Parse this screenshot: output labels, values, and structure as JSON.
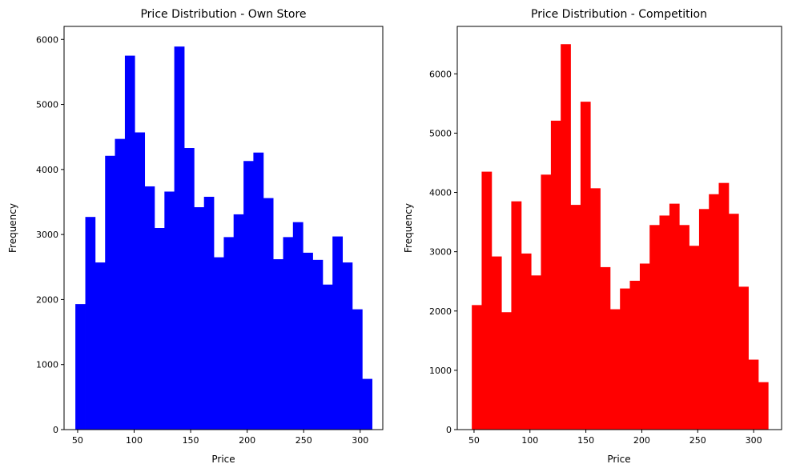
{
  "chart_data": [
    {
      "type": "bar",
      "title": "Price Distribution - Own Store",
      "xlabel": "Price",
      "ylabel": "Frequency",
      "xlim": [
        38,
        320
      ],
      "ylim": [
        0,
        6200
      ],
      "xticks": [
        50,
        100,
        150,
        200,
        250,
        300
      ],
      "yticks": [
        0,
        1000,
        2000,
        3000,
        4000,
        5000,
        6000
      ],
      "color": "#0000ff",
      "bins": [
        {
          "x0": 48.0,
          "x1": 56.8,
          "count": 1930
        },
        {
          "x0": 56.8,
          "x1": 65.5,
          "count": 3270
        },
        {
          "x0": 65.5,
          "x1": 74.3,
          "count": 2570
        },
        {
          "x0": 74.3,
          "x1": 83.0,
          "count": 4210
        },
        {
          "x0": 83.0,
          "x1": 91.8,
          "count": 4470
        },
        {
          "x0": 91.8,
          "x1": 100.5,
          "count": 5750
        },
        {
          "x0": 100.5,
          "x1": 109.3,
          "count": 4570
        },
        {
          "x0": 109.3,
          "x1": 118.0,
          "count": 3740
        },
        {
          "x0": 118.0,
          "x1": 126.8,
          "count": 3100
        },
        {
          "x0": 126.8,
          "x1": 135.5,
          "count": 3660
        },
        {
          "x0": 135.5,
          "x1": 144.3,
          "count": 5890
        },
        {
          "x0": 144.3,
          "x1": 153.0,
          "count": 4330
        },
        {
          "x0": 153.0,
          "x1": 161.8,
          "count": 3420
        },
        {
          "x0": 161.8,
          "x1": 170.5,
          "count": 3580
        },
        {
          "x0": 170.5,
          "x1": 179.3,
          "count": 2650
        },
        {
          "x0": 179.3,
          "x1": 188.0,
          "count": 2960
        },
        {
          "x0": 188.0,
          "x1": 196.8,
          "count": 3310
        },
        {
          "x0": 196.8,
          "x1": 205.5,
          "count": 4130
        },
        {
          "x0": 205.5,
          "x1": 214.3,
          "count": 4260
        },
        {
          "x0": 214.3,
          "x1": 223.0,
          "count": 3560
        },
        {
          "x0": 223.0,
          "x1": 231.8,
          "count": 2620
        },
        {
          "x0": 231.8,
          "x1": 240.5,
          "count": 2960
        },
        {
          "x0": 240.5,
          "x1": 249.3,
          "count": 3190
        },
        {
          "x0": 249.3,
          "x1": 258.0,
          "count": 2720
        },
        {
          "x0": 258.0,
          "x1": 266.8,
          "count": 2610
        },
        {
          "x0": 266.8,
          "x1": 275.5,
          "count": 2230
        },
        {
          "x0": 275.5,
          "x1": 284.3,
          "count": 2970
        },
        {
          "x0": 284.3,
          "x1": 293.0,
          "count": 2570
        },
        {
          "x0": 293.0,
          "x1": 301.8,
          "count": 1850
        },
        {
          "x0": 301.8,
          "x1": 310.5,
          "count": 780
        }
      ]
    },
    {
      "type": "bar",
      "title": "Price Distribution - Competition",
      "xlabel": "Price",
      "ylabel": "Frequency",
      "xlim": [
        35,
        325
      ],
      "ylim": [
        0,
        6800
      ],
      "xticks": [
        50,
        100,
        150,
        200,
        250,
        300
      ],
      "yticks": [
        0,
        1000,
        2000,
        3000,
        4000,
        5000,
        6000
      ],
      "color": "#ff0000",
      "bins": [
        {
          "x0": 48.0,
          "x1": 56.8,
          "count": 2100
        },
        {
          "x0": 56.8,
          "x1": 65.7,
          "count": 4350
        },
        {
          "x0": 65.7,
          "x1": 74.5,
          "count": 2920
        },
        {
          "x0": 74.5,
          "x1": 83.3,
          "count": 1980
        },
        {
          "x0": 83.3,
          "x1": 92.2,
          "count": 3850
        },
        {
          "x0": 92.2,
          "x1": 101.0,
          "count": 2970
        },
        {
          "x0": 101.0,
          "x1": 109.8,
          "count": 2600
        },
        {
          "x0": 109.8,
          "x1": 118.7,
          "count": 4300
        },
        {
          "x0": 118.7,
          "x1": 127.5,
          "count": 5210
        },
        {
          "x0": 127.5,
          "x1": 136.3,
          "count": 6500
        },
        {
          "x0": 136.3,
          "x1": 145.2,
          "count": 3790
        },
        {
          "x0": 145.2,
          "x1": 154.0,
          "count": 5530
        },
        {
          "x0": 154.0,
          "x1": 162.8,
          "count": 4070
        },
        {
          "x0": 162.8,
          "x1": 171.7,
          "count": 2740
        },
        {
          "x0": 171.7,
          "x1": 180.5,
          "count": 2030
        },
        {
          "x0": 180.5,
          "x1": 189.3,
          "count": 2380
        },
        {
          "x0": 189.3,
          "x1": 198.2,
          "count": 2510
        },
        {
          "x0": 198.2,
          "x1": 207.0,
          "count": 2800
        },
        {
          "x0": 207.0,
          "x1": 215.8,
          "count": 3450
        },
        {
          "x0": 215.8,
          "x1": 224.7,
          "count": 3610
        },
        {
          "x0": 224.7,
          "x1": 233.5,
          "count": 3810
        },
        {
          "x0": 233.5,
          "x1": 242.3,
          "count": 3450
        },
        {
          "x0": 242.3,
          "x1": 251.2,
          "count": 3100
        },
        {
          "x0": 251.2,
          "x1": 260.0,
          "count": 3720
        },
        {
          "x0": 260.0,
          "x1": 268.8,
          "count": 3970
        },
        {
          "x0": 268.8,
          "x1": 277.7,
          "count": 4160
        },
        {
          "x0": 277.7,
          "x1": 286.5,
          "count": 3640
        },
        {
          "x0": 286.5,
          "x1": 295.3,
          "count": 2410
        },
        {
          "x0": 295.3,
          "x1": 304.2,
          "count": 1180
        },
        {
          "x0": 304.2,
          "x1": 313.0,
          "count": 800
        }
      ]
    }
  ]
}
